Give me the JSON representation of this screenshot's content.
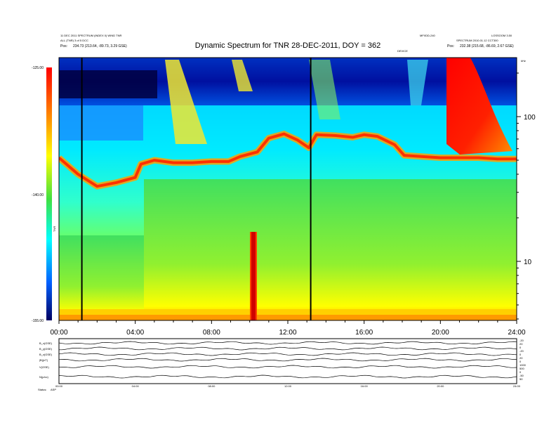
{
  "header": {
    "title": "Dynamic Spectrum for TNR 28-DEC-2011, DOY = 362",
    "left_line1": "11 DEC 2011 SPECTRUM (INDEX 0) WIND TNR",
    "left_line2": "ALL (TNR) 3 of 5 DCC",
    "left_line3_label": "Pos:",
    "left_line3_value": "234.73 (213.64, -89.73, 3.29 GSE)",
    "right_line1": "MFI/DD-240",
    "right_line2": "LOSSOOM 3.50",
    "right_line3": "SPECTRUM 2010.01.12 CCT300",
    "right_line4_label": "Pos:",
    "right_line4_value": "232.38 (215.68, -86.69, 2.67 GSE)",
    "marker_label": "DEVICE"
  },
  "colorbar": {
    "label": "TNR",
    "ticks": [
      "-125.00",
      "-140.00",
      "-155.00"
    ]
  },
  "y_axis": {
    "ticks": [
      "100",
      "10"
    ],
    "top_label": "kHz"
  },
  "x_axis": {
    "ticks": [
      "00:00",
      "04:00",
      "08:00",
      "12:00",
      "16:00",
      "20:00",
      "24:00"
    ]
  },
  "lower_panel": {
    "row_labels": [
      "B_x(GSE)",
      "B_y(GSE)",
      "B_z(GSE)",
      "|B|(nT)",
      "V(GSE)",
      "N(p/cc)"
    ],
    "left_footer": "Status:",
    "left_footer_value": "ASP",
    "right_scale": [
      "-20",
      "20",
      "0",
      "-20",
      "0",
      "20",
      "0",
      "1000",
      "500",
      "0",
      "-50",
      "50"
    ]
  },
  "chart_data": {
    "type": "heatmap",
    "title": "Dynamic Spectrum for TNR 28-DEC-2011, DOY = 362",
    "xlabel": "",
    "ylabel": "",
    "x_range": [
      "00:00",
      "24:00"
    ],
    "y_scale": "log",
    "y_ticks": [
      10,
      100
    ],
    "color_scale": {
      "min": -155.0,
      "max": -125.0,
      "ticks": [
        -125.0,
        -140.0,
        -155.0
      ],
      "colormap": "rainbow",
      "label": "TNR"
    },
    "vertical_markers_hours": [
      1.2,
      13.2
    ],
    "plasma_line_hours": [
      0,
      1,
      2,
      3,
      4,
      4.3,
      5,
      6,
      7,
      8,
      8.9,
      9.5,
      10.4,
      11,
      11.8,
      12.5,
      13.1,
      13.5,
      14.5,
      15.4,
      16.0,
      16.7,
      17.6,
      18.1,
      19,
      20,
      21,
      22,
      23,
      24
    ],
    "plasma_line_khz": [
      52,
      40,
      33,
      35,
      38,
      47,
      50,
      48,
      48,
      49,
      49,
      53,
      57,
      71,
      76,
      69,
      61,
      75,
      74,
      72,
      75,
      73,
      64,
      54,
      53,
      52,
      52,
      52,
      51,
      51
    ],
    "regions": [
      {
        "name": "high-intensity burst",
        "x_hours": [
          20.4,
          24.0
        ],
        "y_khz": [
          70,
          200
        ]
      },
      {
        "name": "narrowband emission",
        "x_hours": [
          10.1,
          10.35
        ],
        "y_khz": [
          4,
          20
        ]
      }
    ]
  }
}
